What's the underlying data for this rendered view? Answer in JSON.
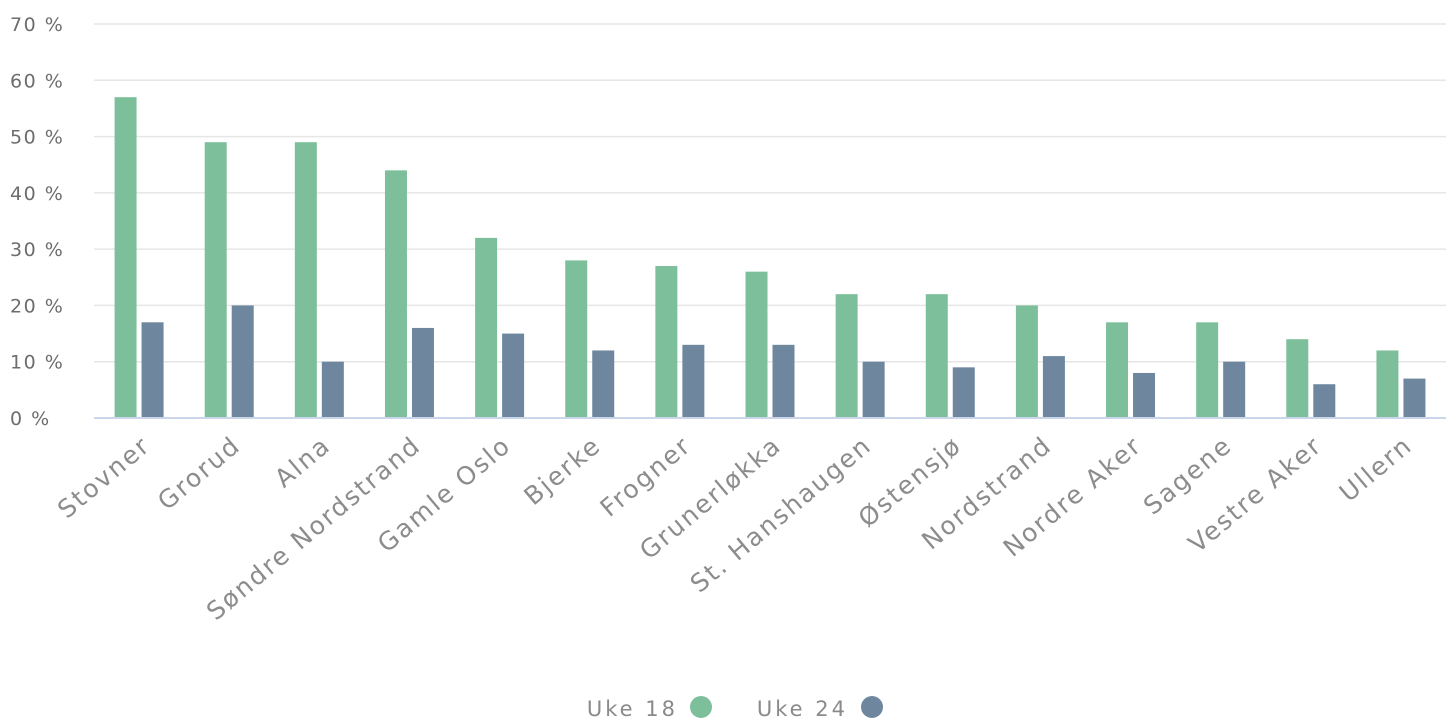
{
  "chart_data": {
    "type": "bar",
    "categories": [
      "Stovner",
      "Grorud",
      "Alna",
      "Søndre Nordstrand",
      "Gamle Oslo",
      "Bjerke",
      "Frogner",
      "Grunerløkka",
      "St. Hanshaugen",
      "Østensjø",
      "Nordstrand",
      "Nordre Aker",
      "Sagene",
      "Vestre Aker",
      "Ullern"
    ],
    "series": [
      {
        "name": "Uke 18",
        "color": "#7dbf9b",
        "values": [
          57,
          49,
          49,
          44,
          32,
          28,
          27,
          26,
          22,
          22,
          20,
          17,
          17,
          14,
          12
        ]
      },
      {
        "name": "Uke 24",
        "color": "#6e879f",
        "values": [
          17,
          20,
          10,
          16,
          15,
          12,
          13,
          13,
          10,
          9,
          11,
          8,
          10,
          6,
          7
        ]
      }
    ],
    "ylim": [
      0,
      70
    ],
    "yticks": [
      0,
      10,
      20,
      30,
      40,
      50,
      60,
      70
    ],
    "ytick_suffix": " %",
    "grid": true,
    "legend_position": "bottom-center",
    "title": "",
    "xlabel": "",
    "ylabel": ""
  }
}
